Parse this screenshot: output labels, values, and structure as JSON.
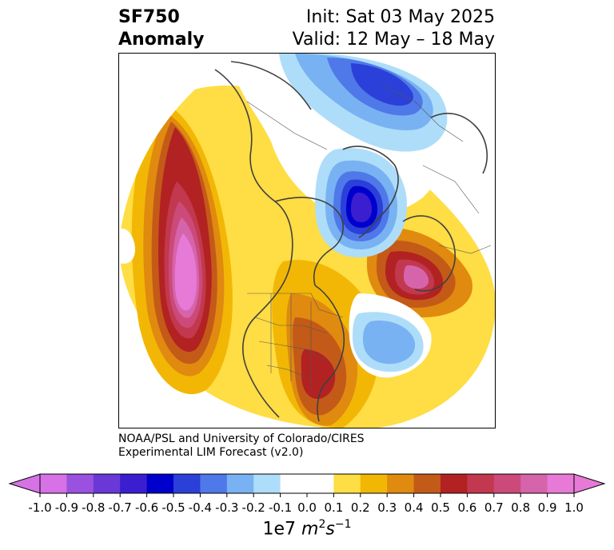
{
  "title": {
    "left_line1": "SF750",
    "left_line2": "Anomaly",
    "right_line1": "Init: Sat 03 May 2025",
    "right_line2": "Valid: 12 May – 18 May"
  },
  "credit": {
    "line1": "NOAA/PSL and University of Colorado/CIRES",
    "line2": "Experimental LIM Forecast (v2.0)"
  },
  "colorbar": {
    "ticks": [
      "-1.0",
      "-0.9",
      "-0.8",
      "-0.7",
      "-0.6",
      "-0.5",
      "-0.4",
      "-0.3",
      "-0.2",
      "-0.1",
      "0.0",
      "0.1",
      "0.2",
      "0.3",
      "0.4",
      "0.5",
      "0.6",
      "0.7",
      "0.8",
      "0.9",
      "1.0"
    ],
    "colors": [
      "#d672e6",
      "#9b51e0",
      "#6a38d6",
      "#3a1ed0",
      "#0000cc",
      "#2a40d8",
      "#4f78e8",
      "#78b2f2",
      "#aeddfa",
      "#ffffff",
      "#ffffff",
      "#ffdd44",
      "#f2b705",
      "#e08a10",
      "#c45a18",
      "#b22222",
      "#c2384e",
      "#cc4a7a",
      "#d664aa",
      "#e67ad6"
    ],
    "min_color": "#d672e6",
    "max_color": "#e67ad6",
    "label_prefix": "1e7 ",
    "label_m": "m",
    "label_m_exp": "2",
    "label_s": "s",
    "label_s_exp": "−1"
  },
  "map": {
    "projection": "north-polar-stereographic",
    "features": [
      {
        "name": "positive-anomaly-north-pacific",
        "peak": 1.0
      },
      {
        "name": "positive-anomaly-eastern-us",
        "peak": 0.6
      },
      {
        "name": "positive-anomaly-northeast-atlantic",
        "peak": 0.8
      },
      {
        "name": "negative-anomaly-greenland",
        "peak": -0.6
      },
      {
        "name": "negative-anomaly-arctic-siberia",
        "peak": -0.5
      },
      {
        "name": "negative-anomaly-central-atlantic",
        "peak": -0.3
      }
    ]
  }
}
